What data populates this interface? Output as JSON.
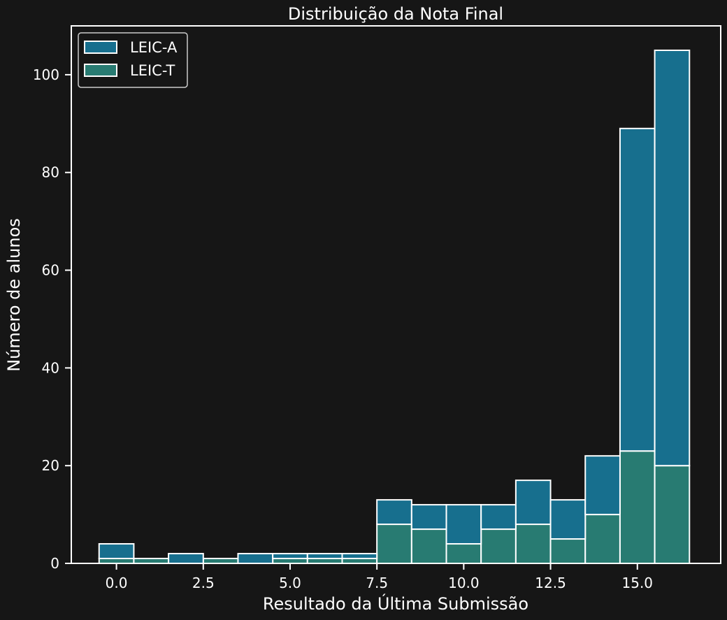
{
  "chart_data": {
    "type": "bar",
    "title": "Distribuição da Nota Final",
    "xlabel": "Resultado da Última Submissão",
    "ylabel": "Número de alunos",
    "xlim": [
      -1.3,
      17.4
    ],
    "ylim": [
      0,
      110
    ],
    "xticks": [
      0.0,
      2.5,
      5.0,
      7.5,
      10.0,
      12.5,
      15.0
    ],
    "xtick_labels": [
      "0.0",
      "2.5",
      "5.0",
      "7.5",
      "10.0",
      "12.5",
      "15.0"
    ],
    "yticks": [
      0,
      20,
      40,
      60,
      80,
      100
    ],
    "ytick_labels": [
      "0",
      "20",
      "40",
      "60",
      "80",
      "100"
    ],
    "bin_width": 1,
    "stacked": true,
    "categories": [
      0,
      1,
      2,
      3,
      4,
      5,
      6,
      7,
      8,
      9,
      10,
      11,
      12,
      13,
      14,
      15,
      16
    ],
    "series": [
      {
        "name": "LEIC-T",
        "color": "#287b72",
        "values": [
          1,
          1,
          0,
          1,
          0,
          1,
          1,
          1,
          8,
          7,
          4,
          7,
          8,
          5,
          10,
          23,
          20
        ]
      },
      {
        "name": "LEIC-A",
        "color": "#176f8e",
        "values": [
          3,
          0,
          2,
          0,
          2,
          1,
          1,
          1,
          5,
          5,
          8,
          5,
          9,
          8,
          12,
          66,
          85
        ]
      }
    ],
    "legend": {
      "position": "top-left",
      "entries": [
        {
          "label": "LEIC-A",
          "color": "#176f8e"
        },
        {
          "label": "LEIC-T",
          "color": "#287b72"
        }
      ]
    },
    "grid": false,
    "background": "#161616",
    "edge_color": "#ffffff"
  }
}
